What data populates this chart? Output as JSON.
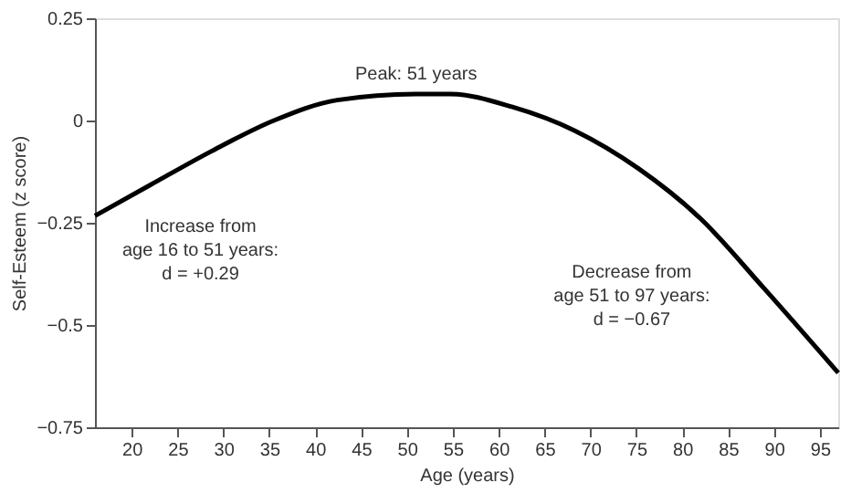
{
  "chart_data": {
    "type": "line",
    "xlabel": "Age (years)",
    "ylabel": "Self-Esteem (z score)",
    "x": [
      16,
      22,
      28.7,
      35.5,
      42.4,
      51,
      54.7,
      61.5,
      68.3,
      75.2,
      82,
      88.9,
      97
    ],
    "series": [
      {
        "color": "#000000",
        "values": [
          -0.233,
          -0.158,
          -0.075,
          0.0,
          0.05,
          0.065,
          0.065,
          0.033,
          -0.025,
          -0.117,
          -0.24,
          -0.41,
          -0.617
        ]
      }
    ],
    "xlim": [
      16,
      97
    ],
    "xticks": [
      20,
      25,
      30,
      35,
      40,
      45,
      50,
      55,
      60,
      65,
      70,
      75,
      80,
      85,
      90,
      95
    ],
    "ylim": [
      -0.75,
      0.25
    ],
    "yticks": [
      {
        "value": -0.75,
        "label": "−0.75"
      },
      {
        "value": -0.5,
        "label": "−0.5"
      },
      {
        "value": -0.25,
        "label": "−0.25"
      },
      0,
      0.25
    ],
    "grid": false,
    "marker": "none",
    "line_style": "solid",
    "annotations": [
      {
        "text": "Peak: 51 years",
        "x": 51,
        "y": 0.065
      },
      "Increase from\nage 16 to 51 years:\nd = +0.29",
      "Decrease from\nage 51 to 97 years:\nd = −0.67"
    ]
  }
}
